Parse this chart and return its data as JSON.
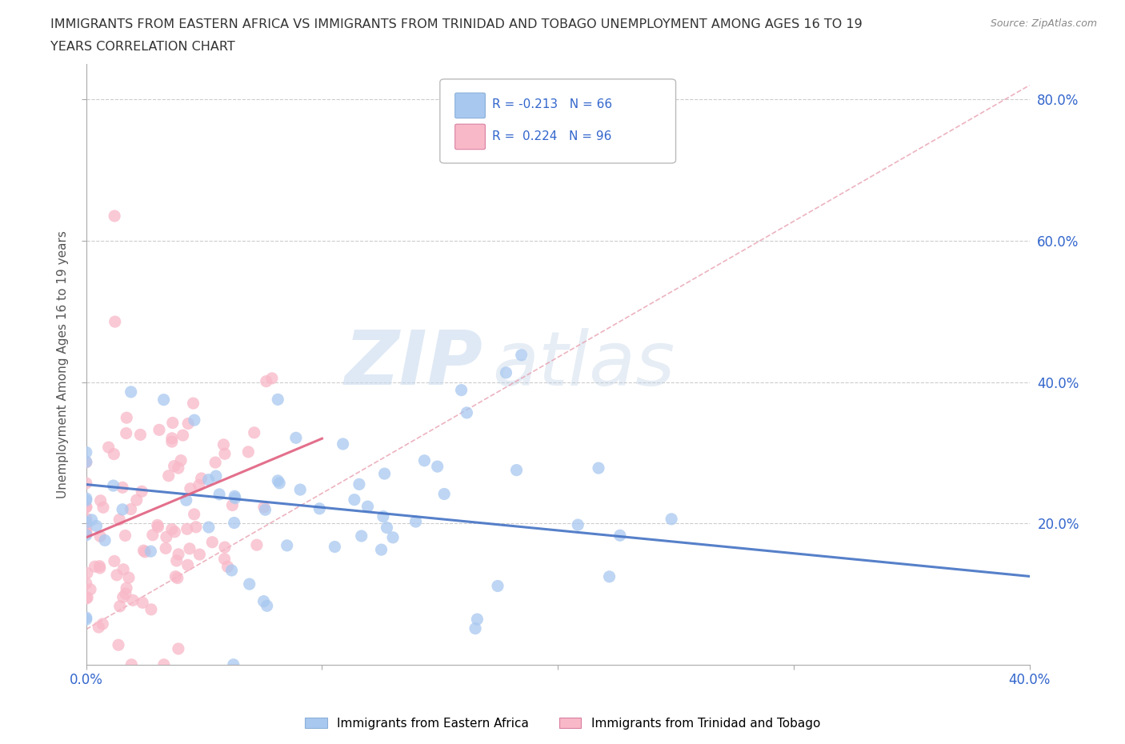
{
  "title_line1": "IMMIGRANTS FROM EASTERN AFRICA VS IMMIGRANTS FROM TRINIDAD AND TOBAGO UNEMPLOYMENT AMONG AGES 16 TO 19",
  "title_line2": "YEARS CORRELATION CHART",
  "source": "Source: ZipAtlas.com",
  "ylabel": "Unemployment Among Ages 16 to 19 years",
  "xlim": [
    0.0,
    0.4
  ],
  "ylim": [
    0.0,
    0.85
  ],
  "blue_color": "#a8c8f0",
  "blue_color_line": "#4472c4",
  "pink_color": "#f8b8c8",
  "pink_color_line": "#e06080",
  "pink_color_dash": "#e8a0b0",
  "blue_R": -0.213,
  "blue_N": 66,
  "pink_R": 0.224,
  "pink_N": 96,
  "legend1_label": "Immigrants from Eastern Africa",
  "legend2_label": "Immigrants from Trinidad and Tobago",
  "watermark_zip": "ZIP",
  "watermark_atlas": "atlas",
  "background_color": "#ffffff"
}
